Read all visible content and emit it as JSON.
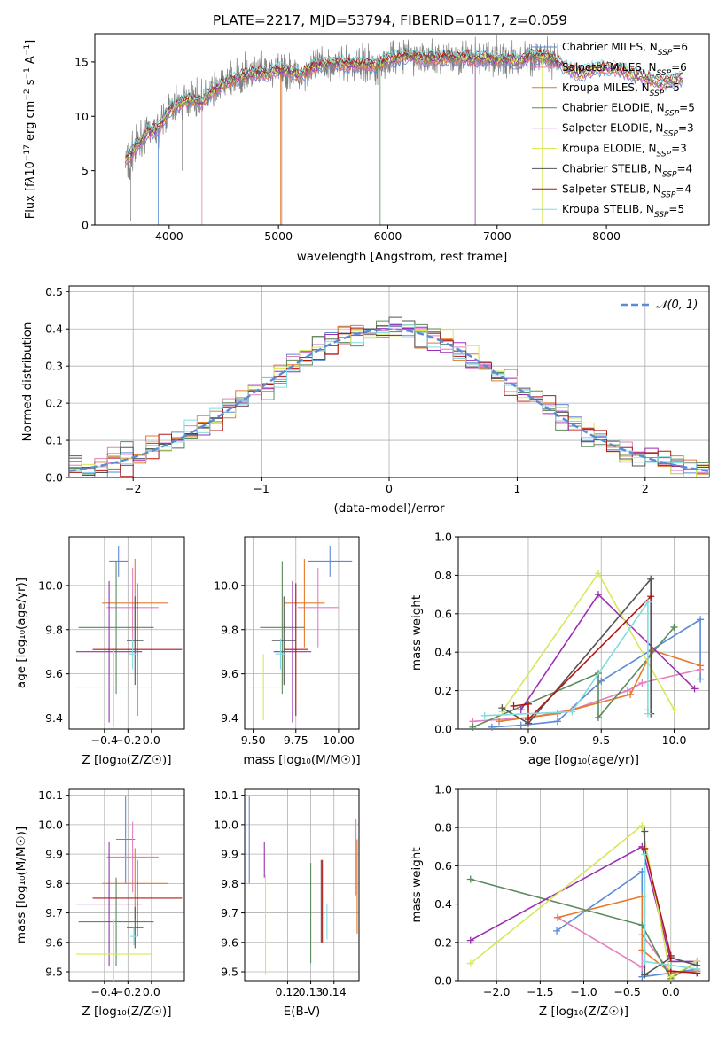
{
  "title": "PLATE=2217, MJD=53794, FIBERID=0117, z=0.059",
  "colors": {
    "Chabrier MILES": "#5b8ad6",
    "Salpeter MILES": "#e27fbf",
    "Kroupa MILES": "#e57a2c",
    "Chabrier ELODIE": "#5c8a5c",
    "Salpeter ELODIE": "#9b2fb0",
    "Kroupa ELODIE": "#d8e85a",
    "Chabrier STELIB": "#555555",
    "Salpeter STELIB": "#b01818",
    "Kroupa STELIB": "#7fdde0",
    "data": "#808080"
  },
  "models": [
    {
      "name": "Chabrier MILES",
      "nssp": 6
    },
    {
      "name": "Salpeter MILES",
      "nssp": 6
    },
    {
      "name": "Kroupa MILES",
      "nssp": 5
    },
    {
      "name": "Chabrier ELODIE",
      "nssp": 5
    },
    {
      "name": "Salpeter ELODIE",
      "nssp": 3
    },
    {
      "name": "Kroupa ELODIE",
      "nssp": 3
    },
    {
      "name": "Chabrier STELIB",
      "nssp": 4
    },
    {
      "name": "Salpeter STELIB",
      "nssp": 4
    },
    {
      "name": "Kroupa STELIB",
      "nssp": 5
    }
  ],
  "chart_data": [
    {
      "type": "line",
      "id": "spectrum",
      "xlabel": "wavelength [Angstrom, rest frame]",
      "ylabel_html": "Flux [f<tspan font-style='italic'>λ</tspan>10<tspan baseline-shift='super' font-size='9'>−17</tspan> erg cm<tspan baseline-shift='super' font-size='9'>−2</tspan> s<tspan baseline-shift='super' font-size='9'>−1</tspan> A<tspan baseline-shift='super' font-size='9'>−1</tspan>]",
      "xlim": [
        3320,
        8940
      ],
      "ylim": [
        0,
        17.6
      ],
      "xticks": [
        4000,
        5000,
        6000,
        7000,
        8000
      ],
      "yticks": [
        0,
        5,
        10,
        15
      ],
      "continuum": [
        [
          3600,
          6.0
        ],
        [
          3700,
          7.2
        ],
        [
          3800,
          8.5
        ],
        [
          3900,
          8.8
        ],
        [
          4000,
          10.6
        ],
        [
          4100,
          11.2
        ],
        [
          4200,
          11.6
        ],
        [
          4300,
          11.3
        ],
        [
          4400,
          12.3
        ],
        [
          4500,
          13.0
        ],
        [
          4600,
          13.4
        ],
        [
          4700,
          13.8
        ],
        [
          4800,
          14.0
        ],
        [
          4900,
          13.9
        ],
        [
          5000,
          14.3
        ],
        [
          5100,
          14.1
        ],
        [
          5200,
          13.8
        ],
        [
          5300,
          14.4
        ],
        [
          5400,
          14.7
        ],
        [
          5500,
          14.9
        ],
        [
          5600,
          14.8
        ],
        [
          5700,
          14.8
        ],
        [
          5800,
          14.8
        ],
        [
          5900,
          14.7
        ],
        [
          6000,
          15.2
        ],
        [
          6100,
          15.4
        ],
        [
          6200,
          15.6
        ],
        [
          6300,
          15.3
        ],
        [
          6400,
          15.3
        ],
        [
          6500,
          15.4
        ],
        [
          6600,
          15.4
        ],
        [
          6700,
          15.4
        ],
        [
          6800,
          15.3
        ],
        [
          6900,
          15.3
        ],
        [
          7000,
          15.2
        ],
        [
          7100,
          15.2
        ],
        [
          7200,
          15.1
        ],
        [
          7300,
          15.5
        ],
        [
          7400,
          15.6
        ],
        [
          7500,
          15.2
        ],
        [
          7600,
          14.7
        ],
        [
          7700,
          14.1
        ],
        [
          7800,
          14.0
        ],
        [
          7900,
          14.4
        ],
        [
          8000,
          14.5
        ],
        [
          8100,
          14.3
        ],
        [
          8200,
          14.0
        ],
        [
          8300,
          13.7
        ],
        [
          8400,
          13.4
        ],
        [
          8500,
          13.1
        ],
        [
          8600,
          13.3
        ],
        [
          8700,
          13.5
        ]
      ],
      "data_end": 7560,
      "model_dips": [
        3900,
        4300,
        5020,
        5930,
        6800,
        7410
      ],
      "legend_position": "upper right"
    },
    {
      "type": "histogram",
      "id": "residuals",
      "xlabel": "(data-model)/error",
      "ylabel": "Normed distribution",
      "xlim": [
        -2.5,
        2.5
      ],
      "ylim": [
        0,
        0.515
      ],
      "xticks": [
        -2,
        -1,
        0,
        1,
        2
      ],
      "xtick_labels": [
        "−2",
        "−1",
        "0",
        "1",
        "2"
      ],
      "yticks": [
        0,
        0.1,
        0.2,
        0.3,
        0.4,
        0.5
      ],
      "ytick_labels": [
        "0.0",
        "0.1",
        "0.2",
        "0.3",
        "0.4",
        "0.5"
      ],
      "bin_width": 0.1,
      "reference": {
        "label": "𝒩(0, 1)",
        "type": "gaussian",
        "mu": 0,
        "sigma": 1
      },
      "legend_position": "upper right"
    },
    {
      "type": "scatter",
      "id": "age-vs-z",
      "xlabel": "Z [log₁₀(Z/Z☉)]",
      "ylabel": "age  [log₁₀(age/yr)]",
      "xlim": [
        -0.7,
        0.28
      ],
      "ylim": [
        9.35,
        10.22
      ],
      "xticks": [
        -0.4,
        -0.2,
        0.0
      ],
      "xtick_labels": [
        "−0.4",
        "−0.2",
        "0.0"
      ],
      "yticks": [
        9.4,
        9.6,
        9.8,
        10.0
      ],
      "ytick_labels": [
        "9.4",
        "9.6",
        "9.8",
        "10.0"
      ],
      "points": [
        {
          "model": "Chabrier MILES",
          "x": -0.28,
          "y": 10.11,
          "xerr": 0.08,
          "yerr": 0.07
        },
        {
          "model": "Salpeter MILES",
          "x": -0.16,
          "y": 9.9,
          "xerr": 0.22,
          "yerr": 0.18
        },
        {
          "model": "Kroupa MILES",
          "x": -0.14,
          "y": 9.92,
          "xerr": 0.28,
          "yerr": 0.2
        },
        {
          "model": "Chabrier ELODIE",
          "x": -0.3,
          "y": 9.81,
          "xerr": 0.32,
          "yerr": 0.3
        },
        {
          "model": "Salpeter ELODIE",
          "x": -0.36,
          "y": 9.7,
          "xerr": 0.28,
          "yerr": 0.32
        },
        {
          "model": "Kroupa ELODIE",
          "x": -0.32,
          "y": 9.54,
          "xerr": 0.32,
          "yerr": 0.18
        },
        {
          "model": "Chabrier STELIB",
          "x": -0.14,
          "y": 9.75,
          "xerr": 0.07,
          "yerr": 0.2
        },
        {
          "model": "Salpeter STELIB",
          "x": -0.12,
          "y": 9.71,
          "xerr": 0.38,
          "yerr": 0.3
        },
        {
          "model": "Kroupa STELIB",
          "x": -0.16,
          "y": 9.69,
          "xerr": 0.03,
          "yerr": 0.07
        }
      ]
    },
    {
      "type": "scatter",
      "id": "age-vs-mass",
      "xlabel": "mass [log₁₀(M/M☉)]",
      "ylabel": "",
      "xlim": [
        9.45,
        10.12
      ],
      "ylim": [
        9.35,
        10.22
      ],
      "xticks": [
        9.5,
        9.75,
        10.0
      ],
      "xtick_labels": [
        "9.50",
        "9.75",
        "10.00"
      ],
      "yticks": [
        9.4,
        9.6,
        9.8,
        10.0
      ],
      "ytick_labels": [
        "9.4",
        "9.6",
        "9.8",
        "10.0"
      ],
      "points": [
        {
          "model": "Chabrier MILES",
          "x": 9.95,
          "y": 10.11,
          "xerr": 0.13,
          "yerr": 0.07
        },
        {
          "model": "Salpeter MILES",
          "x": 9.88,
          "y": 9.9,
          "xerr": 0.12,
          "yerr": 0.18
        },
        {
          "model": "Kroupa MILES",
          "x": 9.8,
          "y": 9.92,
          "xerr": 0.12,
          "yerr": 0.2
        },
        {
          "model": "Chabrier ELODIE",
          "x": 9.67,
          "y": 9.81,
          "xerr": 0.13,
          "yerr": 0.3
        },
        {
          "model": "Salpeter ELODIE",
          "x": 9.73,
          "y": 9.7,
          "xerr": 0.11,
          "yerr": 0.32
        },
        {
          "model": "Kroupa ELODIE",
          "x": 9.56,
          "y": 9.54,
          "xerr": 0.12,
          "yerr": 0.15
        },
        {
          "model": "Chabrier STELIB",
          "x": 9.68,
          "y": 9.75,
          "xerr": 0.07,
          "yerr": 0.2
        },
        {
          "model": "Salpeter STELIB",
          "x": 9.75,
          "y": 9.71,
          "xerr": 0.07,
          "yerr": 0.3
        },
        {
          "model": "Kroupa STELIB",
          "x": 9.66,
          "y": 9.69,
          "xerr": 0.03,
          "yerr": 0.07
        }
      ]
    },
    {
      "type": "line",
      "id": "weight-vs-age",
      "xlabel": "age  [log₁₀(age/yr)]",
      "ylabel": "mass weight",
      "xlim": [
        8.52,
        10.24
      ],
      "ylim": [
        0,
        1
      ],
      "xticks": [
        9.0,
        9.5,
        10.0
      ],
      "xtick_labels": [
        "9.0",
        "9.5",
        "10.0"
      ],
      "yticks": [
        0,
        0.2,
        0.4,
        0.6,
        0.8,
        1.0
      ],
      "ytick_labels": [
        "0.0",
        "0.2",
        "0.4",
        "0.6",
        "0.8",
        "1.0"
      ],
      "series": [
        {
          "model": "Chabrier MILES",
          "x": [
            8.75,
            8.95,
            9.2,
            9.5,
            10.18,
            10.18
          ],
          "y": [
            0.01,
            0.02,
            0.04,
            0.25,
            0.57,
            0.26
          ]
        },
        {
          "model": "Salpeter MILES",
          "x": [
            8.62,
            9.0,
            9.3,
            9.68,
            9.78,
            10.18
          ],
          "y": [
            0.04,
            0.06,
            0.1,
            0.2,
            0.24,
            0.31
          ]
        },
        {
          "model": "Kroupa MILES",
          "x": [
            8.8,
            9.2,
            9.7,
            9.85,
            10.18
          ],
          "y": [
            0.04,
            0.08,
            0.18,
            0.41,
            0.33
          ]
        },
        {
          "model": "Chabrier ELODIE",
          "x": [
            8.62,
            9.48,
            9.48,
            10.0,
            10.0
          ],
          "y": [
            0.01,
            0.29,
            0.06,
            0.53,
            0.53
          ]
        },
        {
          "model": "Salpeter ELODIE",
          "x": [
            8.95,
            9.48,
            10.14
          ],
          "y": [
            0.1,
            0.7,
            0.21
          ]
        },
        {
          "model": "Kroupa ELODIE",
          "x": [
            8.82,
            9.48,
            10.0
          ],
          "y": [
            0.09,
            0.81,
            0.1
          ]
        },
        {
          "model": "Chabrier STELIB",
          "x": [
            8.82,
            9.0,
            9.84,
            9.84
          ],
          "y": [
            0.11,
            0.03,
            0.78,
            0.08
          ]
        },
        {
          "model": "Salpeter STELIB",
          "x": [
            8.9,
            9.0,
            9.0,
            9.84
          ],
          "y": [
            0.12,
            0.13,
            0.05,
            0.69
          ]
        },
        {
          "model": "Kroupa STELIB",
          "x": [
            8.7,
            9.3,
            9.82,
            9.82,
            9.82
          ],
          "y": [
            0.07,
            0.09,
            0.66,
            0.1,
            0.08
          ]
        }
      ]
    },
    {
      "type": "scatter",
      "id": "mass-vs-z",
      "xlabel": "Z [log₁₀(Z/Z☉)]",
      "ylabel": "mass [log₁₀(M/M☉)]",
      "xlim": [
        -0.7,
        0.28
      ],
      "ylim": [
        9.47,
        10.12
      ],
      "xticks": [
        -0.4,
        -0.2,
        0.0
      ],
      "xtick_labels": [
        "−0.4",
        "−0.2",
        "0.0"
      ],
      "yticks": [
        9.5,
        9.6,
        9.7,
        9.8,
        9.9,
        10.0,
        10.1
      ],
      "ytick_labels": [
        "9.5",
        "9.6",
        "9.7",
        "9.8",
        "9.9",
        "10.0",
        "10.1"
      ],
      "points": [
        {
          "model": "Chabrier MILES",
          "x": -0.22,
          "y": 9.95,
          "xerr": 0.08,
          "yerr": 0.15
        },
        {
          "model": "Salpeter MILES",
          "x": -0.16,
          "y": 9.89,
          "xerr": 0.22,
          "yerr": 0.12
        },
        {
          "model": "Kroupa MILES",
          "x": -0.14,
          "y": 9.8,
          "xerr": 0.28,
          "yerr": 0.12
        },
        {
          "model": "Chabrier ELODIE",
          "x": -0.3,
          "y": 9.67,
          "xerr": 0.32,
          "yerr": 0.15
        },
        {
          "model": "Salpeter ELODIE",
          "x": -0.36,
          "y": 9.73,
          "xerr": 0.28,
          "yerr": 0.21
        },
        {
          "model": "Kroupa ELODIE",
          "x": -0.32,
          "y": 9.56,
          "xerr": 0.32,
          "yerr": 0.12
        },
        {
          "model": "Chabrier STELIB",
          "x": -0.14,
          "y": 9.65,
          "xerr": 0.07,
          "yerr": 0.07
        },
        {
          "model": "Salpeter STELIB",
          "x": -0.12,
          "y": 9.75,
          "xerr": 0.38,
          "yerr": 0.13
        },
        {
          "model": "Kroupa STELIB",
          "x": -0.15,
          "y": 9.62,
          "xerr": 0.03,
          "yerr": 0.03
        }
      ]
    },
    {
      "type": "scatter",
      "id": "mass-vs-ebv",
      "xlabel": "E(B-V)",
      "ylabel": "",
      "xlim": [
        0.1015,
        0.1508
      ],
      "ylim": [
        9.47,
        10.12
      ],
      "xticks": [
        0.12,
        0.13,
        0.14
      ],
      "xtick_labels": [
        "0.12",
        "0.13",
        "0.14"
      ],
      "yticks": [
        9.5,
        9.6,
        9.7,
        9.8,
        9.9,
        10.0,
        10.1
      ],
      "ytick_labels": [
        "9.5",
        "9.6",
        "9.7",
        "9.8",
        "9.9",
        "10.0",
        "10.1"
      ],
      "points": [
        {
          "model": "Chabrier MILES",
          "x": 0.1035,
          "y": 9.95,
          "xerr": 0,
          "yerr": 0.15
        },
        {
          "model": "Salpeter MILES",
          "x": 0.1495,
          "y": 9.89,
          "xerr": 0,
          "yerr": 0.13
        },
        {
          "model": "Kroupa MILES",
          "x": 0.15,
          "y": 9.79,
          "xerr": 0,
          "yerr": 0.16
        },
        {
          "model": "Chabrier ELODIE",
          "x": 0.13,
          "y": 9.7,
          "xerr": 0,
          "yerr": 0.17
        },
        {
          "model": "Salpeter ELODIE",
          "x": 0.11,
          "y": 9.88,
          "xerr": 0,
          "yerr": 0.06
        },
        {
          "model": "Kroupa ELODIE",
          "x": 0.1105,
          "y": 9.66,
          "xerr": 0,
          "yerr": 0.17
        },
        {
          "model": "Chabrier STELIB",
          "x": 0.1345,
          "y": 9.74,
          "xerr": 0,
          "yerr": 0.14
        },
        {
          "model": "Salpeter STELIB",
          "x": 0.135,
          "y": 9.74,
          "xerr": 0,
          "yerr": 0.14
        },
        {
          "model": "Kroupa STELIB",
          "x": 0.137,
          "y": 9.67,
          "xerr": 0,
          "yerr": 0.06
        }
      ]
    },
    {
      "type": "line",
      "id": "weight-vs-z",
      "xlabel": "Z [log₁₀(Z/Z☉)]",
      "ylabel": "mass weight",
      "xlim": [
        -2.44,
        0.44
      ],
      "ylim": [
        0,
        1
      ],
      "xticks": [
        -2.0,
        -1.5,
        -1.0,
        -0.5,
        0.0
      ],
      "xtick_labels": [
        "−2.0",
        "−1.5",
        "−1.0",
        "−0.5",
        "0.0"
      ],
      "yticks": [
        0,
        0.2,
        0.4,
        0.6,
        0.8,
        1.0
      ],
      "ytick_labels": [
        "0.0",
        "0.2",
        "0.4",
        "0.6",
        "0.8",
        "1.0"
      ],
      "series": [
        {
          "model": "Chabrier MILES",
          "x": [
            -1.31,
            -0.33,
            -0.33,
            0.0,
            0.3
          ],
          "y": [
            0.26,
            0.57,
            0.02,
            0.04,
            0.06
          ]
        },
        {
          "model": "Salpeter MILES",
          "x": [
            -1.3,
            -0.33,
            -0.33,
            0.0,
            0.3
          ],
          "y": [
            0.33,
            0.07,
            0.24,
            0.04,
            0.05
          ]
        },
        {
          "model": "Kroupa MILES",
          "x": [
            -1.3,
            -0.33,
            -0.33,
            0.0,
            0.3
          ],
          "y": [
            0.33,
            0.44,
            0.16,
            0.04,
            0.05
          ]
        },
        {
          "model": "Chabrier ELODIE",
          "x": [
            -2.3,
            -0.33,
            0.0,
            0.3
          ],
          "y": [
            0.53,
            0.29,
            0.01,
            0.1
          ]
        },
        {
          "model": "Salpeter ELODIE",
          "x": [
            -2.3,
            -0.33,
            0.0,
            0.3
          ],
          "y": [
            0.21,
            0.7,
            0.1,
            0.1
          ]
        },
        {
          "model": "Kroupa ELODIE",
          "x": [
            -2.3,
            -0.33,
            0.0,
            0.3
          ],
          "y": [
            0.09,
            0.81,
            0.02,
            0.1
          ]
        },
        {
          "model": "Chabrier STELIB",
          "x": [
            -0.3,
            -0.3,
            0.0,
            0.3
          ],
          "y": [
            0.78,
            0.03,
            0.12,
            0.08
          ]
        },
        {
          "model": "Salpeter STELIB",
          "x": [
            -0.3,
            0.0,
            0.0,
            0.3
          ],
          "y": [
            0.69,
            0.13,
            0.05,
            0.04
          ]
        },
        {
          "model": "Kroupa STELIB",
          "x": [
            -0.3,
            -0.3,
            0.0,
            0.3
          ],
          "y": [
            0.66,
            0.1,
            0.08,
            0.06
          ]
        }
      ]
    }
  ]
}
